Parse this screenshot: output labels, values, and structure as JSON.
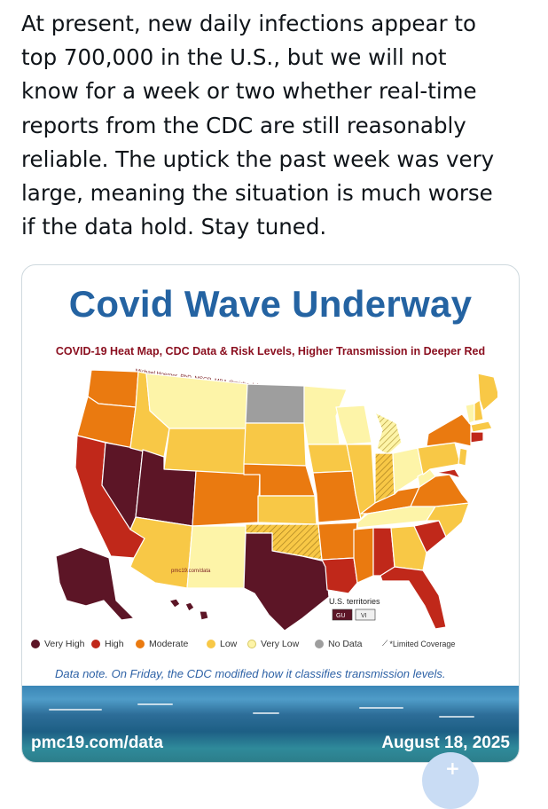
{
  "tweet": {
    "lines": [
      "At present, new daily infections appear to",
      "top 700,000 in the U.S., but we will not",
      "know for a week or two whether real-time",
      "reports from the CDC are still reasonably",
      "reliable. The uptick the past week was very",
      "large, meaning the situation is much worse",
      "if the data hold. Stay tuned."
    ]
  },
  "image": {
    "title": "Covid Wave Underway",
    "subtitle": "COVID-19 Heat Map, CDC Data & Risk Levels, Higher Transmission in Deeper Red",
    "credit": "Michael Hoerger, PhD, MSCR, MBA @michael_hoerger",
    "watermark": "pmc19.com/data",
    "territories_label": "U.S. territories",
    "territory_gu": "GU",
    "territory_vi": "VI",
    "legend": [
      {
        "label": "Very High",
        "color": "#5c1526"
      },
      {
        "label": "High",
        "color": "#c0281a"
      },
      {
        "label": "Moderate",
        "color": "#ea7a10"
      },
      {
        "label": "Low",
        "color": "#f8c846"
      },
      {
        "label": "Very Low",
        "color": "#fdf4a8"
      },
      {
        "label": "No Data",
        "color": "#9e9e9e"
      },
      {
        "label": "*Limited Coverage",
        "color": "hatched"
      }
    ],
    "note": "Data note. On Friday, the CDC modified how it classifies transmission levels.",
    "footer_url": "pmc19.com/data",
    "footer_date": "August 18, 2025"
  },
  "fab_icon": "plus-icon"
}
